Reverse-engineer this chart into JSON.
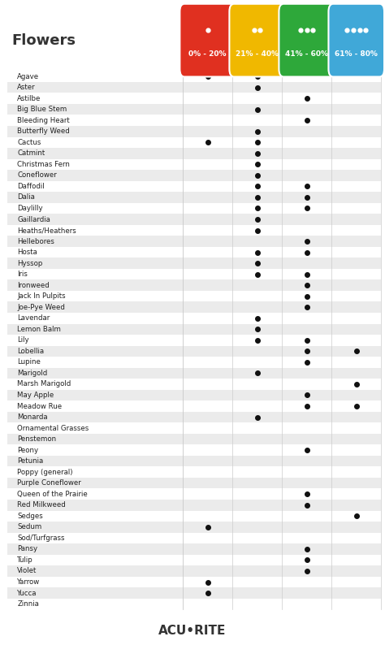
{
  "title": "Flowers",
  "columns": [
    "0% - 20%",
    "21% - 40%",
    "41% - 60%",
    "61% - 80%"
  ],
  "col_colors": [
    "#e03020",
    "#f0b800",
    "#2ea83a",
    "#40a8d8"
  ],
  "plants": [
    "Agave",
    "Aster",
    "Astilbe",
    "Big Blue Stem",
    "Bleeding Heart",
    "Butterfly Weed",
    "Cactus",
    "Catmint",
    "Christmas Fern",
    "Coneflower",
    "Daffodil",
    "Dalia",
    "Daylilly",
    "Gaillardia",
    "Heaths/Heathers",
    "Hellebores",
    "Hosta",
    "Hyssop",
    "Iris",
    "Ironweed",
    "Jack In Pulpits",
    "Joe-Pye Weed",
    "Lavendar",
    "Lemon Balm",
    "Lily",
    "Lobellia",
    "Lupine",
    "Marigold",
    "Marsh Marigold",
    "May Apple",
    "Meadow Rue",
    "Monarda",
    "Ornamental Grasses",
    "Penstemon",
    "Peony",
    "Petunia",
    "Poppy (general)",
    "Purple Coneflower",
    "Queen of the Prairie",
    "Red Milkweed",
    "Sedges",
    "Sedum",
    "Sod/Turfgrass",
    "Pansy",
    "Tulip",
    "Violet",
    "Yarrow",
    "Yucca",
    "Zinnia"
  ],
  "dots": {
    "Agave": [
      1,
      1,
      0,
      0
    ],
    "Aster": [
      0,
      1,
      0,
      0
    ],
    "Astilbe": [
      0,
      0,
      1,
      0
    ],
    "Big Blue Stem": [
      0,
      1,
      0,
      0
    ],
    "Bleeding Heart": [
      0,
      0,
      1,
      0
    ],
    "Butterfly Weed": [
      0,
      1,
      0,
      0
    ],
    "Cactus": [
      1,
      1,
      0,
      0
    ],
    "Catmint": [
      0,
      1,
      0,
      0
    ],
    "Christmas Fern": [
      0,
      1,
      0,
      0
    ],
    "Coneflower": [
      0,
      1,
      0,
      0
    ],
    "Daffodil": [
      0,
      1,
      1,
      0
    ],
    "Dalia": [
      0,
      1,
      1,
      0
    ],
    "Daylilly": [
      0,
      1,
      1,
      0
    ],
    "Gaillardia": [
      0,
      1,
      0,
      0
    ],
    "Heaths/Heathers": [
      0,
      1,
      0,
      0
    ],
    "Hellebores": [
      0,
      0,
      1,
      0
    ],
    "Hosta": [
      0,
      1,
      1,
      0
    ],
    "Hyssop": [
      0,
      1,
      0,
      0
    ],
    "Iris": [
      0,
      1,
      1,
      0
    ],
    "Ironweed": [
      0,
      0,
      1,
      0
    ],
    "Jack In Pulpits": [
      0,
      0,
      1,
      0
    ],
    "Joe-Pye Weed": [
      0,
      0,
      1,
      0
    ],
    "Lavendar": [
      0,
      1,
      0,
      0
    ],
    "Lemon Balm": [
      0,
      1,
      0,
      0
    ],
    "Lily": [
      0,
      1,
      1,
      0
    ],
    "Lobellia": [
      0,
      0,
      1,
      1
    ],
    "Lupine": [
      0,
      0,
      1,
      0
    ],
    "Marigold": [
      0,
      1,
      0,
      0
    ],
    "Marsh Marigold": [
      0,
      0,
      0,
      1
    ],
    "May Apple": [
      0,
      0,
      1,
      0
    ],
    "Meadow Rue": [
      0,
      0,
      1,
      1
    ],
    "Monarda": [
      0,
      1,
      0,
      0
    ],
    "Ornamental Grasses": [
      0,
      0,
      0,
      0
    ],
    "Penstemon": [
      0,
      0,
      0,
      0
    ],
    "Peony": [
      0,
      0,
      1,
      0
    ],
    "Petunia": [
      0,
      0,
      0,
      0
    ],
    "Poppy (general)": [
      0,
      0,
      0,
      0
    ],
    "Purple Coneflower": [
      0,
      0,
      0,
      0
    ],
    "Queen of the Prairie": [
      0,
      0,
      1,
      0
    ],
    "Red Milkweed": [
      0,
      0,
      1,
      0
    ],
    "Sedges": [
      0,
      0,
      0,
      1
    ],
    "Sedum": [
      1,
      0,
      0,
      0
    ],
    "Sod/Turfgrass": [
      0,
      0,
      0,
      0
    ],
    "Pansy": [
      0,
      0,
      1,
      0
    ],
    "Tulip": [
      0,
      0,
      1,
      0
    ],
    "Violet": [
      0,
      0,
      1,
      0
    ],
    "Yarrow": [
      1,
      0,
      0,
      0
    ],
    "Yucca": [
      1,
      0,
      0,
      0
    ],
    "Zinnia": [
      0,
      0,
      0,
      0
    ]
  },
  "bg_color": "#ffffff",
  "row_alt_color": "#ebebeb",
  "dot_color": "#111111",
  "header_text_color": "#ffffff",
  "title_color": "#333333",
  "brand": "ACU•RITE"
}
